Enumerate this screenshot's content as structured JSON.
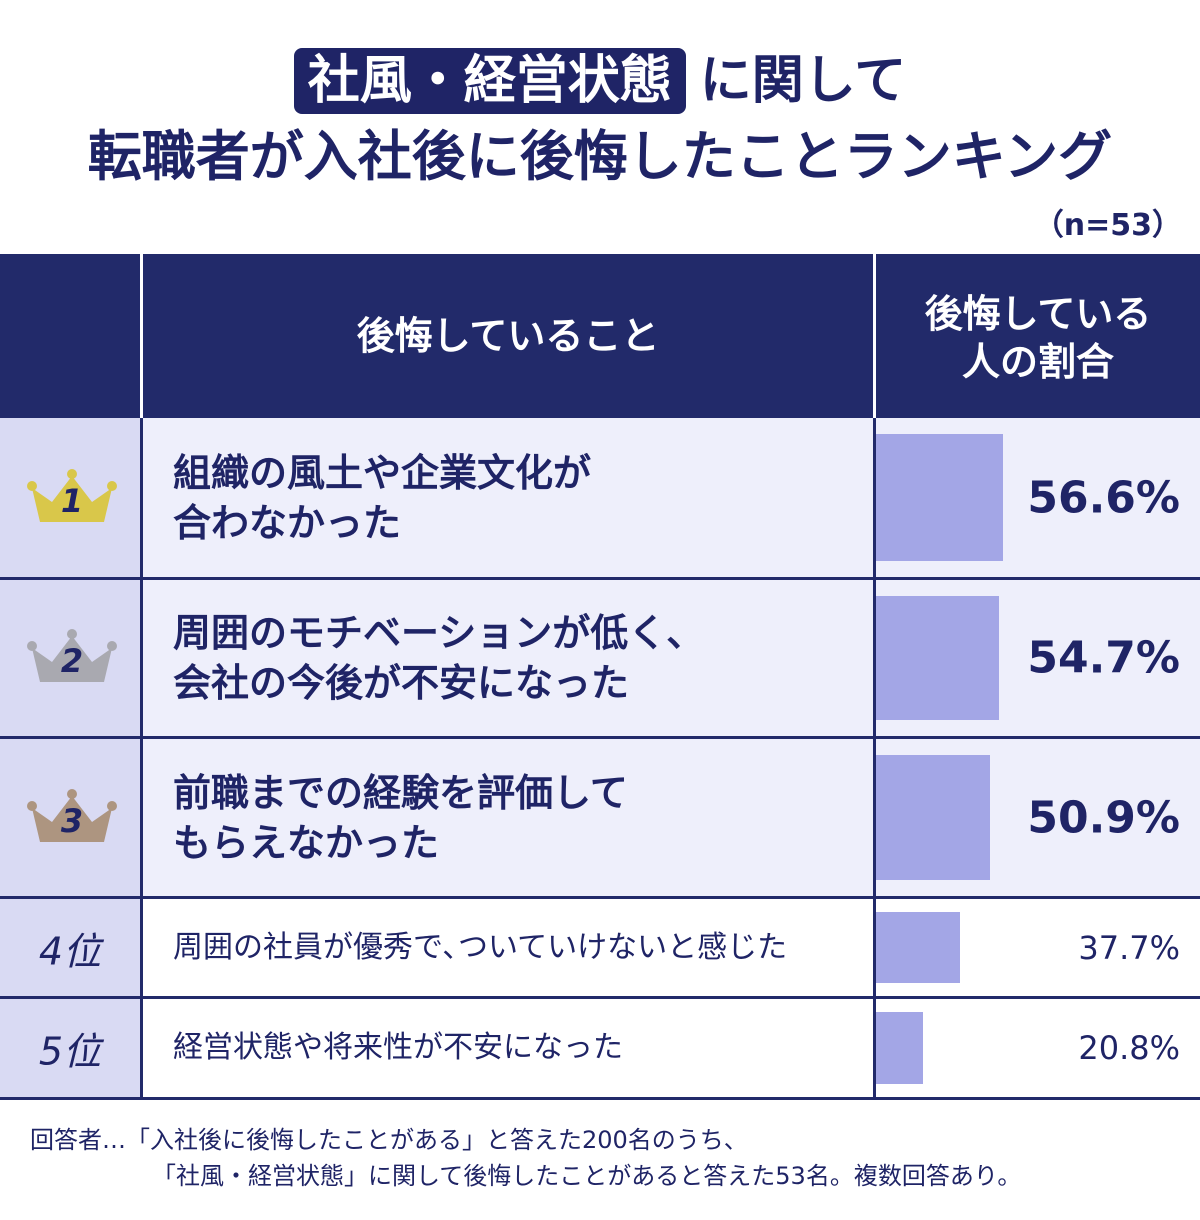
{
  "title": {
    "highlight": "社風・経営状態",
    "line1_rest": "に関して",
    "line2": "転職者が入社後に後悔したことランキング"
  },
  "sample_size": "（n=53）",
  "table": {
    "header_item": "後悔していること",
    "header_rate_line1": "後悔している",
    "header_rate_line2": "人の割合"
  },
  "rows": [
    {
      "rank": "1",
      "crown_color": "#d9c74a",
      "line1": "組織の風土や企業文化が",
      "line2": "合わなかった",
      "value_label": "56.6%"
    },
    {
      "rank": "2",
      "crown_color": "#a9a9b0",
      "line1": "周囲のモチベーションが低く、",
      "line2": "会社の今後が不安になった",
      "value_label": "54.7%"
    },
    {
      "rank": "3",
      "crown_color": "#ad9580",
      "line1": "前職までの経験を評価して",
      "line2": "もらえなかった",
      "value_label": "50.9%"
    },
    {
      "rank": "4位",
      "text": "周囲の社員が優秀で､ついていけないと感じた",
      "value_label": "37.7%"
    },
    {
      "rank": "5位",
      "text": "経営状態や将来性が不安になった",
      "value_label": "20.8%"
    }
  ],
  "chart_data": {
    "type": "bar",
    "orientation": "horizontal",
    "categories": [
      "組織の風土や企業文化が合わなかった",
      "周囲のモチベーションが低く、会社の今後が不安になった",
      "前職までの経験を評価してもらえなかった",
      "周囲の社員が優秀で､ついていけないと感じた",
      "経営状態や将来性が不安になった"
    ],
    "values": [
      56.6,
      54.7,
      50.9,
      37.7,
      20.8
    ],
    "unit": "%",
    "bar_color": "#a3a6e6"
  },
  "footnote": {
    "line1": "回答者…「入社後に後悔したことがある」と答えた200名のうち、",
    "line2": "「社風・経営状態」に関して後悔したことがあると答えた53名。複数回答あり。"
  },
  "colors": {
    "navy": "#222a6a",
    "rank_bg": "#d9daf3",
    "top_bg": "#eeeffb"
  }
}
